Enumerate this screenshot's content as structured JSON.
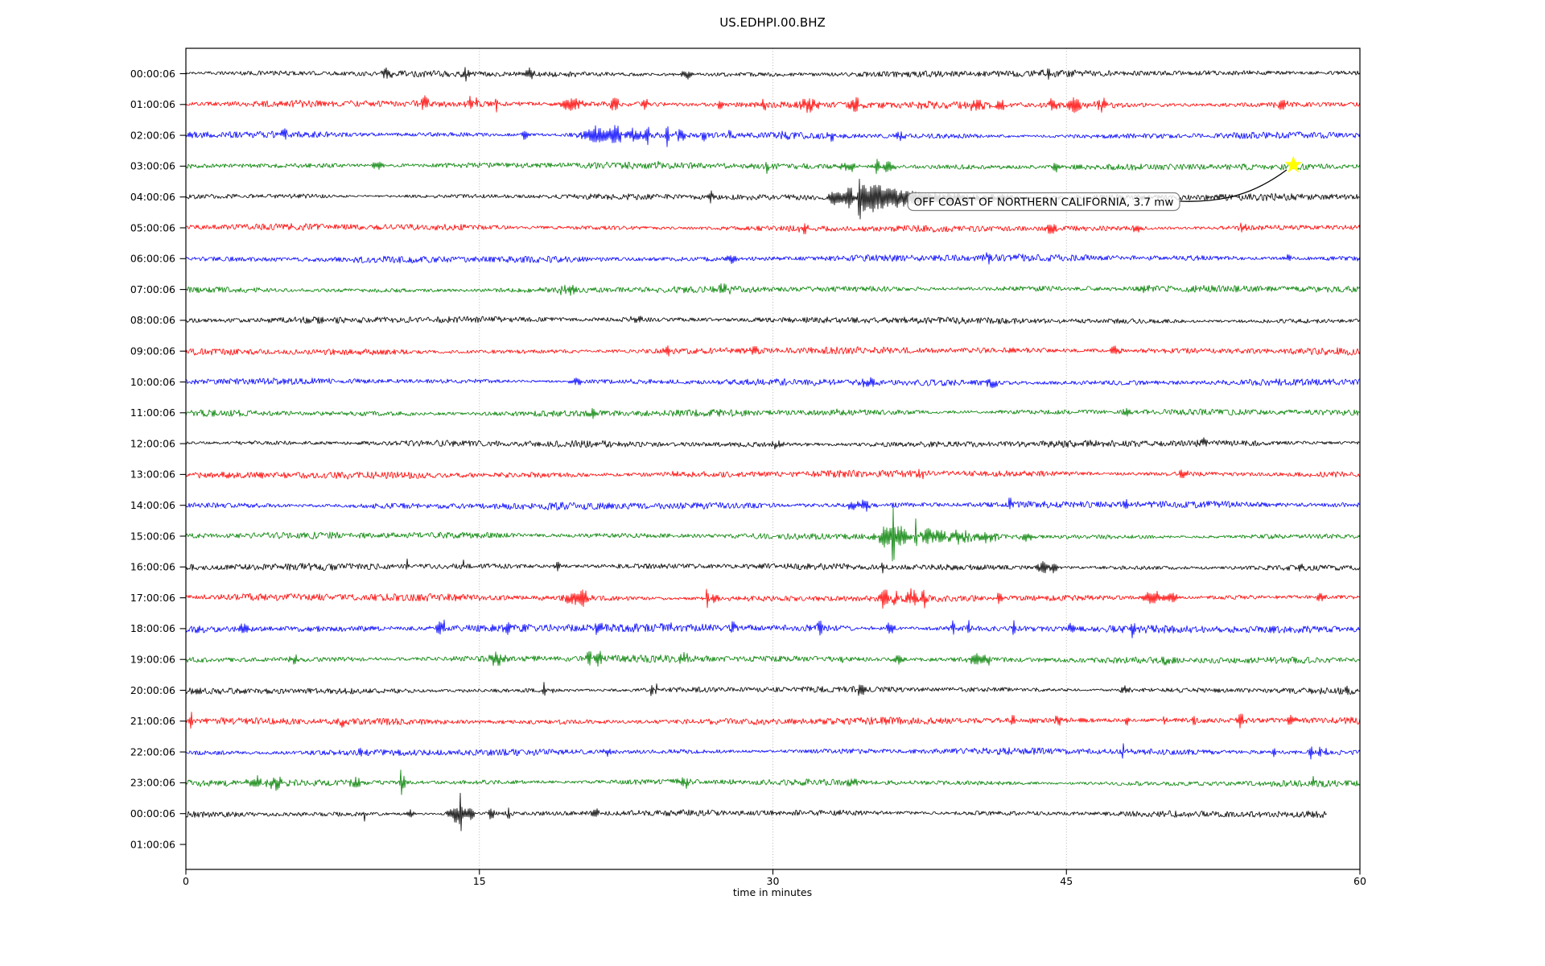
{
  "chart_data": {
    "type": "line",
    "subtype": "helicorder-seismogram",
    "title": "US.EDHPI.00.BHZ",
    "xlabel": "time in minutes",
    "x_ticks": [
      0,
      15,
      30,
      45,
      60
    ],
    "x_range_minutes": [
      0,
      60
    ],
    "grid": "vertical-dotted",
    "trace_color_cycle": [
      "#000000",
      "#ff0000",
      "#0000ff",
      "#008000"
    ],
    "grid_color": "#b0b0b0",
    "rows": [
      {
        "label": "00:00:06",
        "color": "#000000",
        "noise": 3.0,
        "end": 60,
        "events": [
          [
            10.2,
            5,
            0.3
          ],
          [
            14.3,
            7,
            0.25
          ],
          [
            17.6,
            6,
            0.25
          ],
          [
            25.6,
            6,
            0.3
          ],
          [
            44.0,
            5,
            0.25
          ]
        ]
      },
      {
        "label": "01:00:06",
        "color": "#ff0000",
        "noise": 3.2,
        "end": 60,
        "events": [
          [
            12.2,
            6,
            0.2
          ],
          [
            14.55,
            16,
            0.06
          ],
          [
            14.85,
            12,
            0.05
          ],
          [
            15.9,
            9,
            0.06
          ],
          [
            19.7,
            10,
            0.45
          ],
          [
            21.9,
            8,
            0.25
          ],
          [
            23.5,
            6,
            0.2
          ],
          [
            27.3,
            7,
            0.12
          ],
          [
            29.5,
            6,
            0.2
          ],
          [
            31.8,
            7,
            0.5
          ],
          [
            34.2,
            8,
            0.25
          ],
          [
            37.7,
            6,
            0.2
          ],
          [
            40.4,
            7,
            0.3
          ],
          [
            41.6,
            8,
            0.25
          ],
          [
            44.3,
            7,
            0.25
          ],
          [
            45.4,
            9,
            0.3
          ],
          [
            46.8,
            7,
            0.3
          ],
          [
            56.0,
            5,
            0.3
          ]
        ]
      },
      {
        "label": "02:00:06",
        "color": "#0000ff",
        "noise": 3.3,
        "end": 60,
        "events": [
          [
            5.0,
            5,
            0.3
          ],
          [
            17.3,
            6,
            0.15
          ],
          [
            20.9,
            9,
            0.7
          ],
          [
            22.0,
            11,
            0.4
          ],
          [
            23.0,
            9,
            0.3
          ],
          [
            23.6,
            13,
            0.1
          ],
          [
            24.6,
            14,
            0.09
          ],
          [
            25.3,
            8,
            0.25
          ],
          [
            26.5,
            11,
            0.09
          ],
          [
            27.8,
            7,
            0.07
          ],
          [
            30.6,
            6,
            0.15
          ],
          [
            33.0,
            5,
            0.2
          ],
          [
            36.5,
            5,
            0.2
          ]
        ]
      },
      {
        "label": "03:00:06",
        "color": "#008000",
        "noise": 3.0,
        "end": 60,
        "events": [
          [
            9.8,
            5,
            0.3
          ],
          [
            24.0,
            6,
            0.12
          ],
          [
            29.7,
            9,
            0.07
          ],
          [
            33.9,
            7,
            0.35
          ],
          [
            35.3,
            11,
            0.12
          ],
          [
            35.9,
            7,
            0.3
          ],
          [
            44.5,
            5,
            0.25
          ]
        ]
      },
      {
        "label": "04:00:06",
        "color": "#000000",
        "noise": 3.0,
        "end": 60,
        "events": [
          [
            26.8,
            6,
            0.2
          ],
          [
            33.2,
            9,
            0.4
          ],
          [
            33.9,
            13,
            0.25
          ],
          [
            34.42,
            47,
            0.06
          ],
          [
            34.65,
            19,
            0.12
          ],
          [
            35.1,
            15,
            0.45
          ],
          [
            35.9,
            11,
            0.7
          ],
          [
            37.2,
            8,
            1.0
          ],
          [
            39.2,
            6,
            1.2
          ],
          [
            41.5,
            4,
            1.0
          ]
        ]
      },
      {
        "label": "05:00:06",
        "color": "#ff0000",
        "noise": 3.2,
        "end": 60,
        "events": [
          [
            31.6,
            6,
            0.25
          ],
          [
            44.2,
            6,
            0.25
          ],
          [
            48.6,
            6,
            0.2
          ],
          [
            54.0,
            5,
            0.2
          ]
        ]
      },
      {
        "label": "06:00:06",
        "color": "#0000ff",
        "noise": 3.1,
        "end": 60,
        "events": [
          [
            27.9,
            5,
            0.2
          ],
          [
            41.0,
            5,
            0.2
          ],
          [
            56.3,
            6,
            0.15
          ]
        ]
      },
      {
        "label": "07:00:06",
        "color": "#008000",
        "noise": 3.0,
        "end": 60,
        "events": [
          [
            19.5,
            5,
            0.4
          ],
          [
            27.5,
            5,
            0.3
          ],
          [
            49.0,
            4,
            0.3
          ]
        ]
      },
      {
        "label": "08:00:06",
        "color": "#000000",
        "noise": 3.0,
        "end": 60,
        "events": [
          [
            23.0,
            4,
            0.3
          ],
          [
            37.0,
            4,
            0.3
          ]
        ]
      },
      {
        "label": "09:00:06",
        "color": "#ff0000",
        "noise": 3.2,
        "end": 60,
        "events": [
          [
            24.6,
            6,
            0.2
          ],
          [
            29.0,
            5,
            0.25
          ],
          [
            47.5,
            5,
            0.25
          ]
        ]
      },
      {
        "label": "10:00:06",
        "color": "#0000ff",
        "noise": 3.2,
        "end": 60,
        "events": [
          [
            20.0,
            5,
            0.3
          ],
          [
            34.8,
            6,
            0.4
          ],
          [
            41.2,
            6,
            0.25
          ]
        ]
      },
      {
        "label": "11:00:06",
        "color": "#008000",
        "noise": 3.0,
        "end": 60,
        "events": [
          [
            20.8,
            5,
            0.25
          ],
          [
            33.3,
            7,
            0.08
          ],
          [
            48.2,
            5,
            0.25
          ]
        ]
      },
      {
        "label": "12:00:06",
        "color": "#000000",
        "noise": 3.0,
        "end": 60,
        "events": [
          [
            30.2,
            4,
            0.3
          ],
          [
            52.0,
            4,
            0.3
          ]
        ]
      },
      {
        "label": "13:00:06",
        "color": "#ff0000",
        "noise": 3.2,
        "end": 60,
        "events": [
          [
            25.0,
            5,
            0.25
          ],
          [
            37.6,
            5,
            0.25
          ],
          [
            51.0,
            5,
            0.25
          ]
        ]
      },
      {
        "label": "14:00:06",
        "color": "#0000ff",
        "noise": 3.2,
        "end": 60,
        "events": [
          [
            34.0,
            6,
            0.3
          ],
          [
            34.7,
            7,
            0.25
          ],
          [
            42.1,
            9,
            0.07
          ],
          [
            48.0,
            5,
            0.2
          ]
        ]
      },
      {
        "label": "15:00:06",
        "color": "#008000",
        "noise": 3.0,
        "end": 60,
        "events": [
          [
            31.5,
            6,
            0.2
          ],
          [
            35.8,
            14,
            0.4
          ],
          [
            36.15,
            50,
            0.05
          ],
          [
            36.5,
            17,
            0.25
          ],
          [
            37.3,
            25,
            0.06
          ],
          [
            37.9,
            11,
            0.35
          ],
          [
            38.6,
            10,
            0.25
          ],
          [
            39.6,
            7,
            0.5
          ],
          [
            41.0,
            6,
            0.4
          ],
          [
            43.0,
            6,
            0.25
          ]
        ]
      },
      {
        "label": "16:00:06",
        "color": "#000000",
        "noise": 3.0,
        "end": 60,
        "events": [
          [
            11.3,
            10,
            0.07
          ],
          [
            14.2,
            8,
            0.06
          ],
          [
            19.0,
            7,
            0.12
          ],
          [
            35.6,
            5,
            0.2
          ],
          [
            43.8,
            8,
            0.25
          ],
          [
            44.4,
            7,
            0.2
          ],
          [
            57.0,
            5,
            0.2
          ]
        ]
      },
      {
        "label": "17:00:06",
        "color": "#ff0000",
        "noise": 3.3,
        "end": 60,
        "events": [
          [
            19.7,
            7,
            0.3
          ],
          [
            20.3,
            9,
            0.3
          ],
          [
            26.65,
            17,
            0.06
          ],
          [
            27.0,
            8,
            0.15
          ],
          [
            35.7,
            11,
            0.2
          ],
          [
            36.3,
            7,
            0.2
          ],
          [
            37.1,
            11,
            0.25
          ],
          [
            37.7,
            9,
            0.15
          ],
          [
            41.6,
            7,
            0.15
          ],
          [
            49.4,
            8,
            0.5
          ],
          [
            50.4,
            7,
            0.3
          ],
          [
            58.0,
            6,
            0.2
          ]
        ]
      },
      {
        "label": "18:00:06",
        "color": "#0000ff",
        "noise": 3.8,
        "end": 60,
        "events": [
          [
            3.0,
            6,
            0.3
          ],
          [
            12.9,
            8,
            0.2
          ],
          [
            13.2,
            12,
            0.06
          ],
          [
            16.5,
            7,
            0.25
          ],
          [
            21.0,
            7,
            0.25
          ],
          [
            24.8,
            9,
            0.08
          ],
          [
            28.0,
            6,
            0.2
          ],
          [
            32.4,
            8,
            0.12
          ],
          [
            36.0,
            7,
            0.2
          ],
          [
            39.2,
            10,
            0.1
          ],
          [
            40.0,
            9,
            0.09
          ],
          [
            42.3,
            10,
            0.07
          ],
          [
            45.2,
            7,
            0.15
          ],
          [
            48.4,
            8,
            0.15
          ],
          [
            55.5,
            7,
            0.15
          ]
        ]
      },
      {
        "label": "19:00:06",
        "color": "#008000",
        "noise": 3.1,
        "end": 60,
        "events": [
          [
            5.5,
            5,
            0.3
          ],
          [
            15.9,
            7,
            0.35
          ],
          [
            20.6,
            11,
            0.12
          ],
          [
            21.1,
            8,
            0.25
          ],
          [
            25.4,
            6,
            0.25
          ],
          [
            33.5,
            7,
            0.08
          ],
          [
            36.4,
            6,
            0.25
          ],
          [
            40.3,
            10,
            0.25
          ],
          [
            40.9,
            8,
            0.2
          ],
          [
            50.0,
            5,
            0.25
          ]
        ]
      },
      {
        "label": "20:00:06",
        "color": "#000000",
        "noise": 3.0,
        "end": 60,
        "events": [
          [
            18.3,
            11,
            0.06
          ],
          [
            18.75,
            7,
            0.05
          ],
          [
            23.8,
            14,
            0.06
          ],
          [
            24.05,
            9,
            0.05
          ],
          [
            34.5,
            5,
            0.25
          ],
          [
            48.0,
            4,
            0.25
          ],
          [
            59.3,
            11,
            0.06
          ]
        ]
      },
      {
        "label": "21:00:06",
        "color": "#ff0000",
        "noise": 3.2,
        "end": 60,
        "events": [
          [
            0.25,
            13,
            0.08
          ],
          [
            8.0,
            5,
            0.2
          ],
          [
            42.3,
            8,
            0.12
          ],
          [
            44.6,
            6,
            0.15
          ],
          [
            48.1,
            7,
            0.09
          ],
          [
            50.0,
            7,
            0.09
          ],
          [
            51.5,
            10,
            0.07
          ],
          [
            53.9,
            8,
            0.25
          ],
          [
            56.5,
            6,
            0.2
          ]
        ]
      },
      {
        "label": "22:00:06",
        "color": "#0000ff",
        "noise": 3.2,
        "end": 60,
        "events": [
          [
            9.0,
            6,
            0.15
          ],
          [
            21.5,
            5,
            0.2
          ],
          [
            47.9,
            12,
            0.06
          ],
          [
            49.0,
            10,
            0.06
          ],
          [
            55.6,
            9,
            0.08
          ],
          [
            57.5,
            12,
            0.07
          ],
          [
            57.95,
            11,
            0.06
          ],
          [
            58.25,
            9,
            0.07
          ]
        ]
      },
      {
        "label": "23:00:06",
        "color": "#008000",
        "noise": 3.1,
        "end": 60,
        "events": [
          [
            3.6,
            7,
            0.5
          ],
          [
            4.7,
            7,
            0.4
          ],
          [
            8.6,
            5,
            0.3
          ],
          [
            11.0,
            20,
            0.06
          ],
          [
            11.15,
            14,
            0.05
          ],
          [
            25.5,
            6,
            0.25
          ],
          [
            34.0,
            5,
            0.25
          ],
          [
            57.6,
            8,
            0.12
          ]
        ]
      },
      {
        "label": "00:00:06",
        "color": "#000000",
        "noise": 3.0,
        "end": 58.3,
        "events": [
          [
            9.1,
            9,
            0.06
          ],
          [
            11.5,
            5,
            0.2
          ],
          [
            13.8,
            11,
            0.35
          ],
          [
            14.05,
            30,
            0.05
          ],
          [
            14.5,
            9,
            0.25
          ],
          [
            15.6,
            7,
            0.15
          ],
          [
            16.5,
            9,
            0.06
          ],
          [
            21.0,
            5,
            0.25
          ]
        ]
      },
      {
        "label": "01:00:06",
        "color": "#ff0000",
        "noise": 0,
        "end": 0,
        "events": []
      }
    ],
    "star_event": {
      "row_index": 3,
      "minute": 56.6,
      "color": "#ffff00"
    },
    "annotation": {
      "text": "OFF COAST OF NORTHERN CALIFORNIA, 3.7 mw",
      "box_fill": "#ffffff",
      "box_border": "#7f7f7f",
      "points_to_row_label": "03:00:06"
    }
  }
}
